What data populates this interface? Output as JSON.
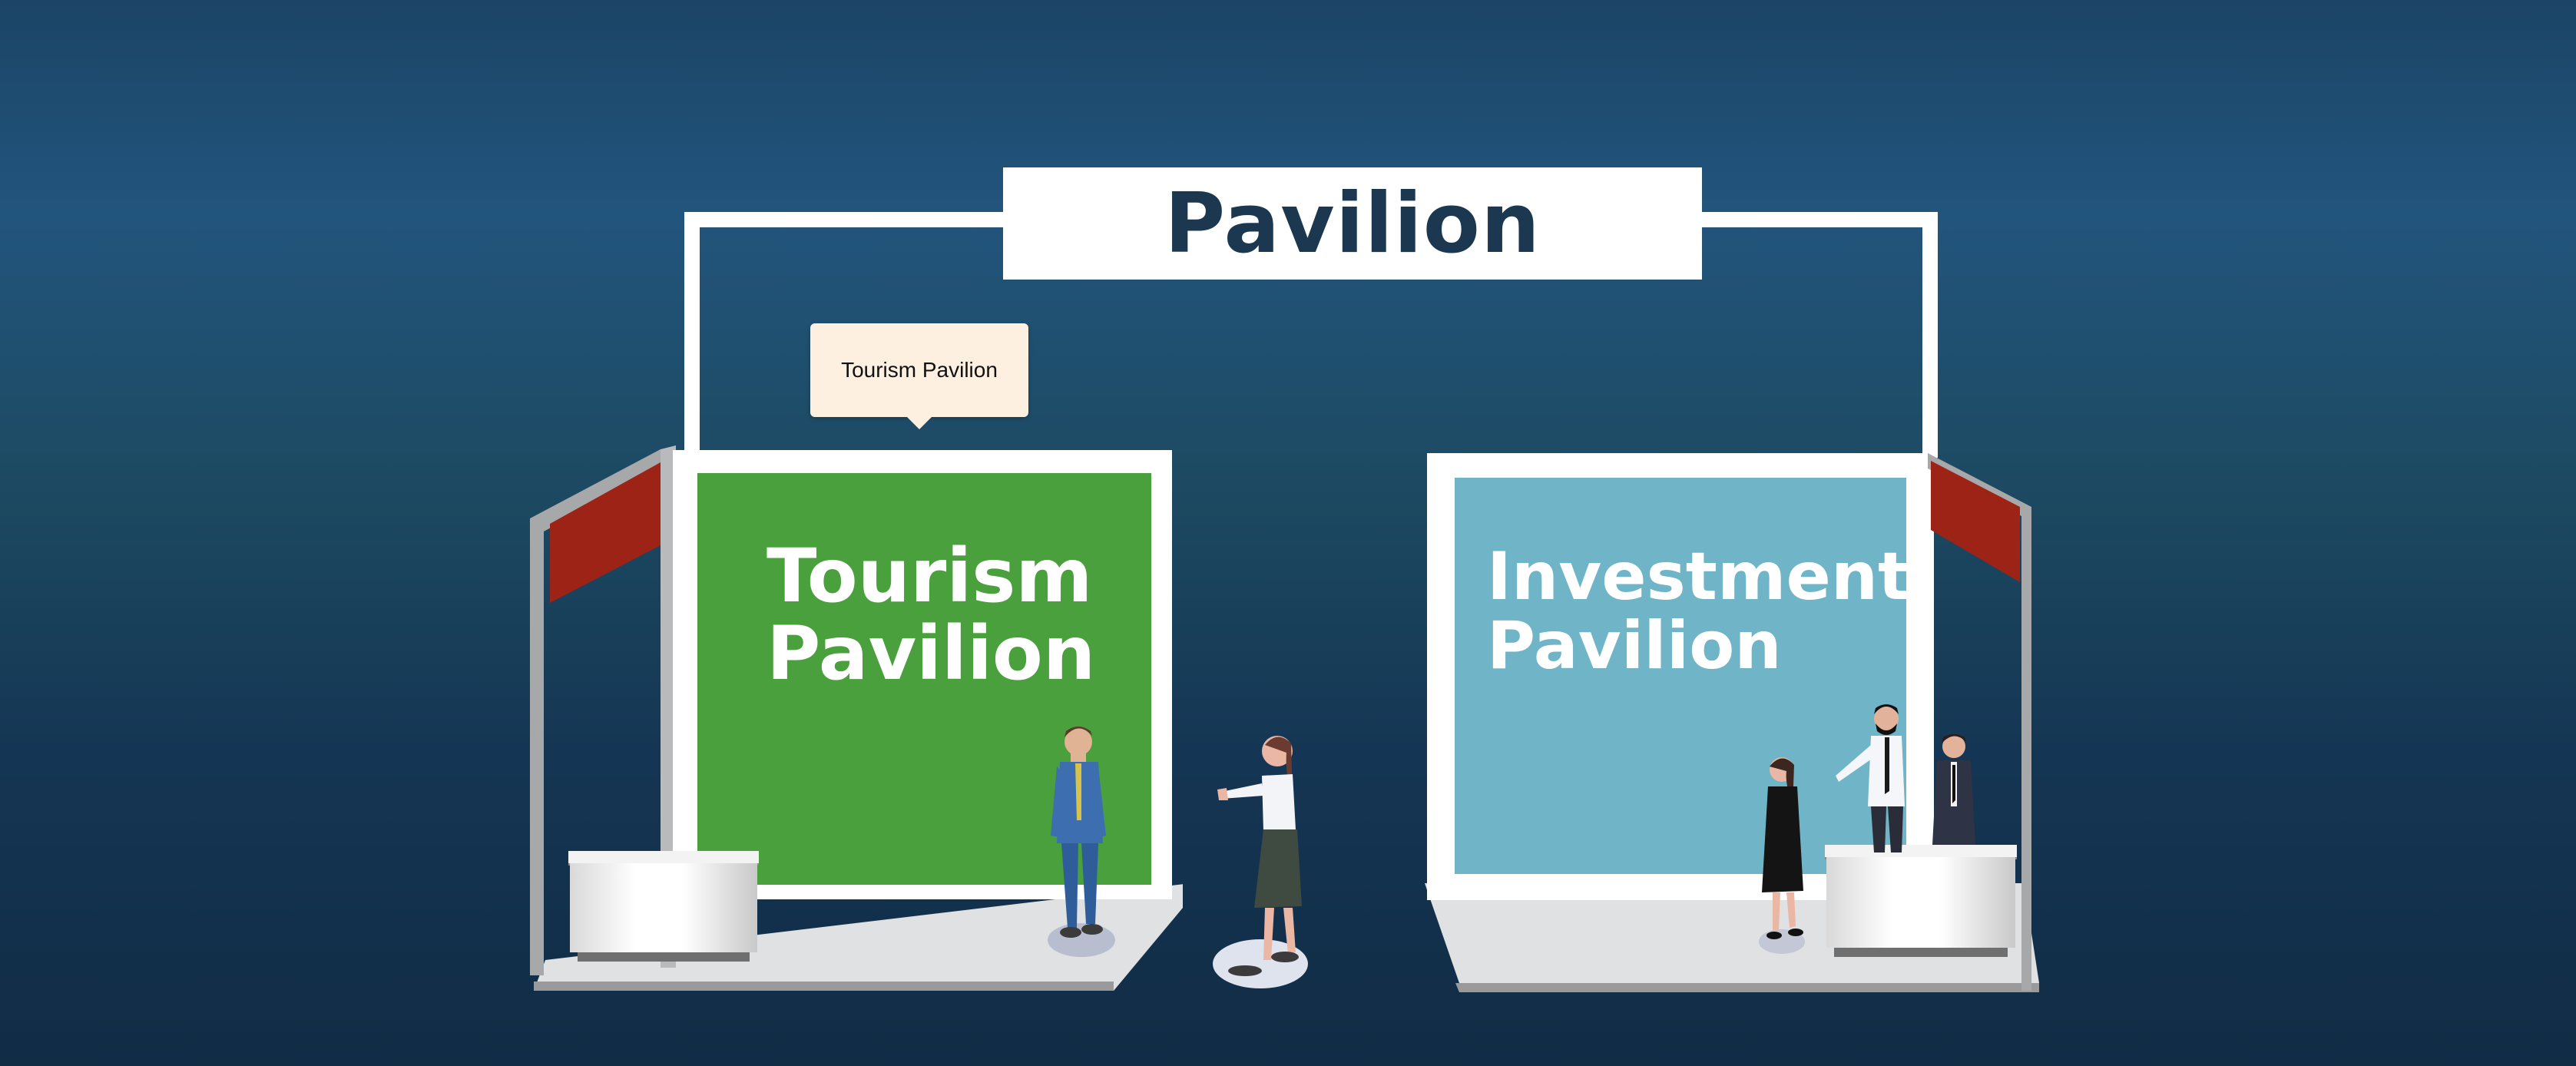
{
  "title": "Pavilion",
  "tooltip": "Tourism Pavilion",
  "booths": [
    {
      "label": "Tourism\nPavilion",
      "color": "#4aa03c"
    },
    {
      "label": "Investment\nPavilion",
      "color": "#6fb4c7"
    }
  ],
  "colors": {
    "background": "#1b4466",
    "title_text": "#1c3850",
    "flag": "#9e2317",
    "floor": "#e0e1e3",
    "frame": "#ffffff"
  }
}
